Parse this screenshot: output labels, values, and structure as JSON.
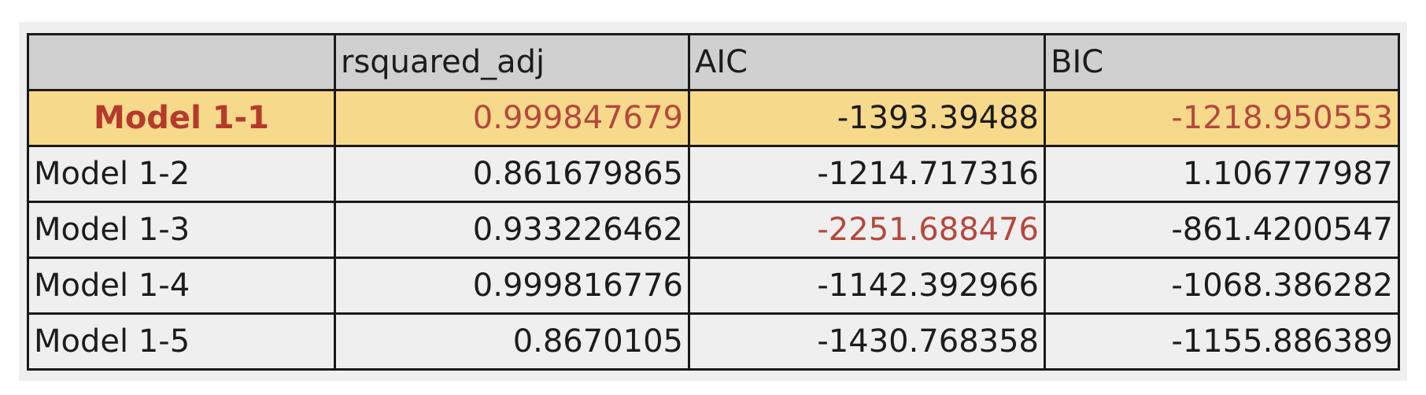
{
  "table": {
    "headers": [
      "",
      "rsquared_adj",
      "AIC",
      "BIC"
    ],
    "rows": [
      {
        "model": "Model 1-1",
        "rsquared_adj": "0.999847679",
        "aic": "-1393.39488",
        "bic": "-1218.950553"
      },
      {
        "model": "Model 1-2",
        "rsquared_adj": "0.861679865",
        "aic": "-1214.717316",
        "bic": "1.106777987"
      },
      {
        "model": "Model 1-3",
        "rsquared_adj": "0.933226462",
        "aic": "-2251.688476",
        "bic": "-861.4200547"
      },
      {
        "model": "Model 1-4",
        "rsquared_adj": "0.999816776",
        "aic": "-1142.392966",
        "bic": "-1068.386282"
      },
      {
        "model": "Model 1-5",
        "rsquared_adj": "0.8670105",
        "aic": "-1430.768358",
        "bic": "-1155.886389"
      }
    ]
  },
  "colors": {
    "highlight_row_bg": "#f7d98c",
    "highlight_text": "#b5483c",
    "header_bg": "#d0d0d0"
  }
}
